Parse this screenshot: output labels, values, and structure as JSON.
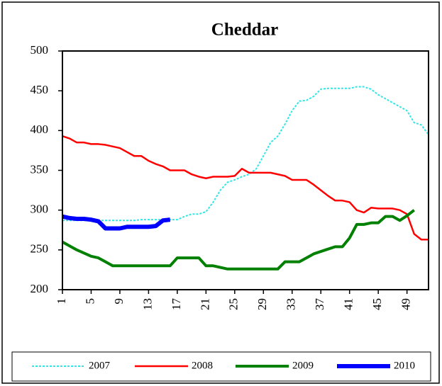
{
  "chart_data": {
    "type": "line",
    "title": "Cheddar",
    "x": [
      1,
      2,
      3,
      4,
      5,
      6,
      7,
      8,
      9,
      10,
      11,
      12,
      13,
      14,
      15,
      16,
      17,
      18,
      19,
      20,
      21,
      22,
      23,
      24,
      25,
      26,
      27,
      28,
      29,
      30,
      31,
      32,
      33,
      34,
      35,
      36,
      37,
      38,
      39,
      40,
      41,
      42,
      43,
      44,
      45,
      46,
      47,
      48,
      49,
      50,
      51,
      52
    ],
    "xlim": [
      1,
      52
    ],
    "xticks": [
      1,
      5,
      9,
      13,
      17,
      21,
      25,
      29,
      33,
      37,
      41,
      45,
      49
    ],
    "ylim": [
      200,
      500
    ],
    "yticks": [
      200,
      250,
      300,
      350,
      400,
      450,
      500
    ],
    "legend": "bottom",
    "series": [
      {
        "name": "2007",
        "color": "#33e6e6",
        "dashed": true,
        "line_width": 2,
        "values": [
          287,
          287,
          287,
          287,
          287,
          287,
          287,
          287,
          287,
          287,
          287,
          288,
          288,
          288,
          288,
          288,
          288,
          292,
          295,
          295,
          298,
          310,
          325,
          335,
          338,
          342,
          345,
          352,
          368,
          385,
          393,
          408,
          425,
          437,
          438,
          443,
          452,
          453,
          453,
          453,
          453,
          455,
          455,
          452,
          445,
          440,
          435,
          430,
          425,
          410,
          407,
          395
        ]
      },
      {
        "name": "2008",
        "color": "#ff0000",
        "dashed": false,
        "line_width": 2.5,
        "values": [
          393,
          390,
          385,
          385,
          383,
          383,
          382,
          380,
          378,
          373,
          368,
          368,
          362,
          358,
          355,
          350,
          350,
          350,
          345,
          342,
          340,
          342,
          342,
          342,
          343,
          352,
          347,
          347,
          347,
          347,
          345,
          343,
          338,
          338,
          338,
          332,
          325,
          318,
          312,
          312,
          310,
          300,
          297,
          303,
          302,
          302,
          302,
          300,
          295,
          270,
          263,
          263
        ]
      },
      {
        "name": "2009",
        "color": "#008000",
        "dashed": false,
        "line_width": 4,
        "values": [
          260,
          255,
          250,
          246,
          242,
          240,
          235,
          230,
          230,
          230,
          230,
          230,
          230,
          230,
          230,
          230,
          240,
          240,
          240,
          240,
          230,
          230,
          228,
          226,
          226,
          226,
          226,
          226,
          226,
          226,
          226,
          235,
          235,
          235,
          240,
          245,
          248,
          251,
          254,
          254,
          265,
          282,
          282,
          284,
          284,
          292,
          292,
          287,
          293,
          300,
          null,
          null
        ]
      },
      {
        "name": "2010",
        "color": "#0000ff",
        "dashed": false,
        "line_width": 6,
        "values": [
          292,
          290,
          289,
          289,
          288,
          286,
          277,
          277,
          277,
          279,
          279,
          279,
          279,
          280,
          287,
          288,
          null,
          null,
          null,
          null,
          null,
          null,
          null,
          null,
          null,
          null,
          null,
          null,
          null,
          null,
          null,
          null,
          null,
          null,
          null,
          null,
          null,
          null,
          null,
          null,
          null,
          null,
          null,
          null,
          null,
          null,
          null,
          null,
          null,
          null,
          null,
          null
        ]
      }
    ]
  }
}
